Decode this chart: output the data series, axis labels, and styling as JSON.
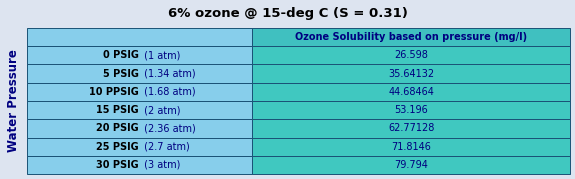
{
  "title": "6% ozone @ 15-deg C (S = 0.31)",
  "title_fontsize": 9.5,
  "col_header": "Ozone Solubility based on pressure (mg/l)",
  "row_label_bold": [
    "0 PSIG",
    "5 PSIG",
    "10 PPSIG",
    "15 PSIG",
    "20 PSIG",
    "25 PSIG",
    "30 PSIG"
  ],
  "row_label_normal": [
    " (1 atm)",
    " (1.34 atm)",
    " (1.68 atm)",
    " (2 atm)",
    " (2.36 atm)",
    " (2.7 atm)",
    " (3 atm)"
  ],
  "values": [
    "26.598",
    "35.64132",
    "44.68464",
    "53.196",
    "62.77128",
    "71.8146",
    "79.794"
  ],
  "ylabel": "Water Pressure",
  "cell_left_bg": "#87CEEB",
  "cell_right_bg": "#40C8C0",
  "header_left_bg": "#87CEEB",
  "header_right_bg": "#40C0C0",
  "border_color": "#1a5276",
  "text_color_dark": "#000080",
  "fig_bg": "#dde4f0",
  "ylabel_color": "#000080",
  "title_color": "#000000",
  "value_color": "#000080",
  "label_bold_color": "#000000",
  "label_normal_color": "#000080"
}
